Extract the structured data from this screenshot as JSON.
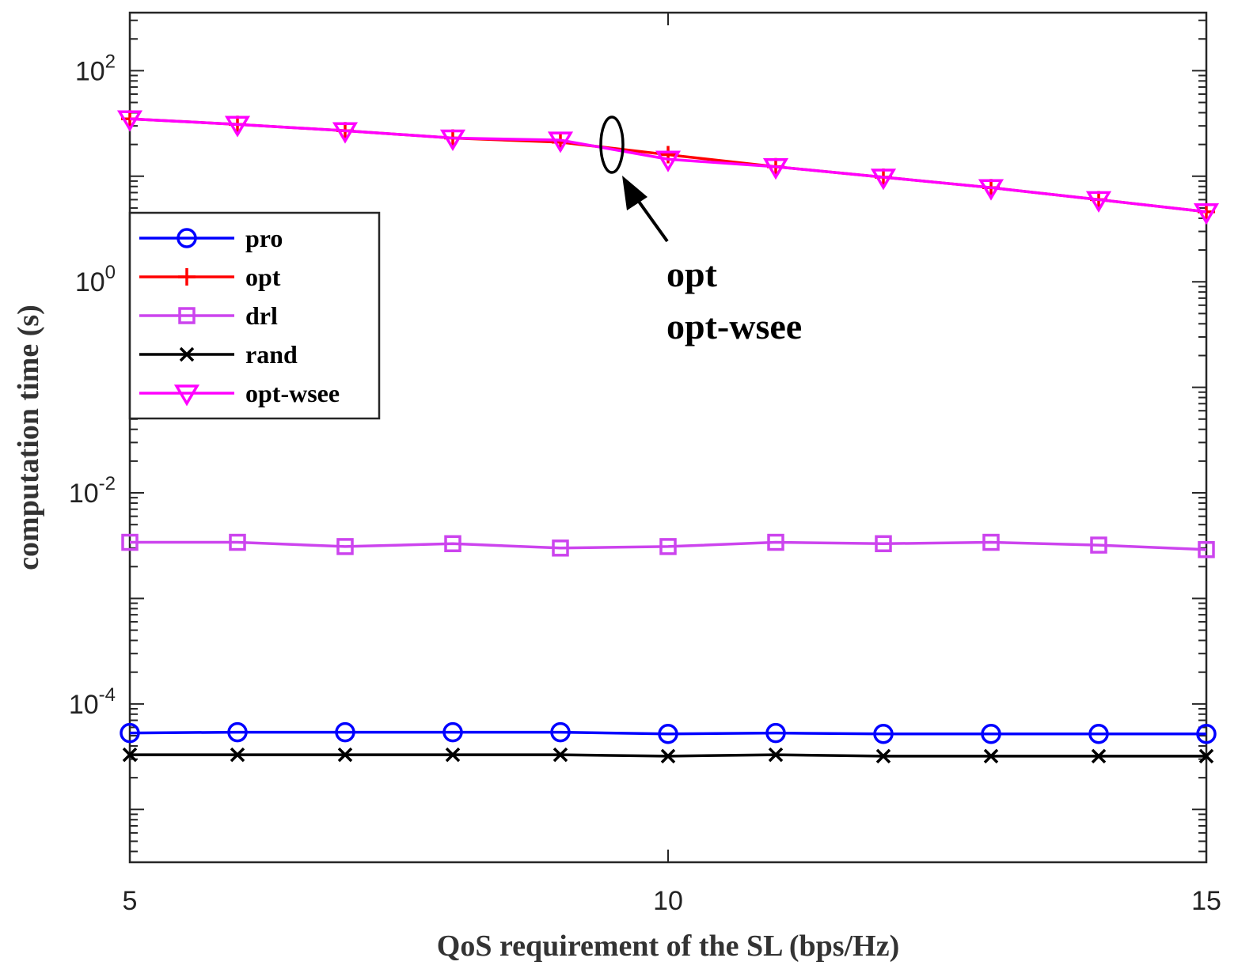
{
  "chart_data": {
    "type": "line",
    "xlabel": "QoS requirement of the SL (bps/Hz)",
    "ylabel": "computation time (s)",
    "xlim": [
      5,
      15
    ],
    "ylim_log10": [
      -5.5,
      2.55
    ],
    "yscale": "log",
    "grid": false,
    "legend_position": "upper-left",
    "x": [
      5,
      6,
      7,
      8,
      9,
      10,
      11,
      12,
      13,
      14,
      15
    ],
    "x_ticks": [
      {
        "value": 5,
        "label": "5"
      },
      {
        "value": 10,
        "label": "10"
      },
      {
        "value": 15,
        "label": "15"
      }
    ],
    "y_ticks": [
      {
        "exp": 2,
        "base": "10",
        "sup": "2"
      },
      {
        "exp": 0,
        "base": "10",
        "sup": "0"
      },
      {
        "exp": -2,
        "base": "10",
        "sup": "-2"
      },
      {
        "exp": -4,
        "base": "10",
        "sup": "-4"
      }
    ],
    "series": [
      {
        "name": "pro",
        "color": "#0000ff",
        "marker": "circle",
        "values": [
          5.3e-05,
          5.4e-05,
          5.4e-05,
          5.4e-05,
          5.4e-05,
          5.2e-05,
          5.3e-05,
          5.2e-05,
          5.2e-05,
          5.2e-05,
          5.2e-05
        ]
      },
      {
        "name": "opt",
        "color": "#ff0000",
        "marker": "plus",
        "values": [
          35,
          31,
          27,
          23,
          21,
          16,
          12.3,
          9.8,
          7.8,
          6.0,
          4.6
        ]
      },
      {
        "name": "drl",
        "color": "#cc44ee",
        "marker": "square",
        "values": [
          0.0034,
          0.0034,
          0.0031,
          0.0033,
          0.003,
          0.0031,
          0.0034,
          0.0033,
          0.0034,
          0.0032,
          0.0029
        ]
      },
      {
        "name": "rand",
        "color": "#000000",
        "marker": "x",
        "values": [
          3.3e-05,
          3.3e-05,
          3.3e-05,
          3.3e-05,
          3.3e-05,
          3.2e-05,
          3.3e-05,
          3.2e-05,
          3.2e-05,
          3.2e-05,
          3.2e-05
        ]
      },
      {
        "name": "opt-wsee",
        "color": "#ff00ff",
        "marker": "triangle-down",
        "values": [
          35,
          31,
          27,
          23,
          22,
          14.5,
          12.3,
          9.8,
          7.8,
          6.0,
          4.6
        ]
      }
    ],
    "annotation": {
      "lines": [
        "opt",
        "opt-wsee"
      ],
      "target_x": 9.4,
      "target_y": 20
    }
  }
}
